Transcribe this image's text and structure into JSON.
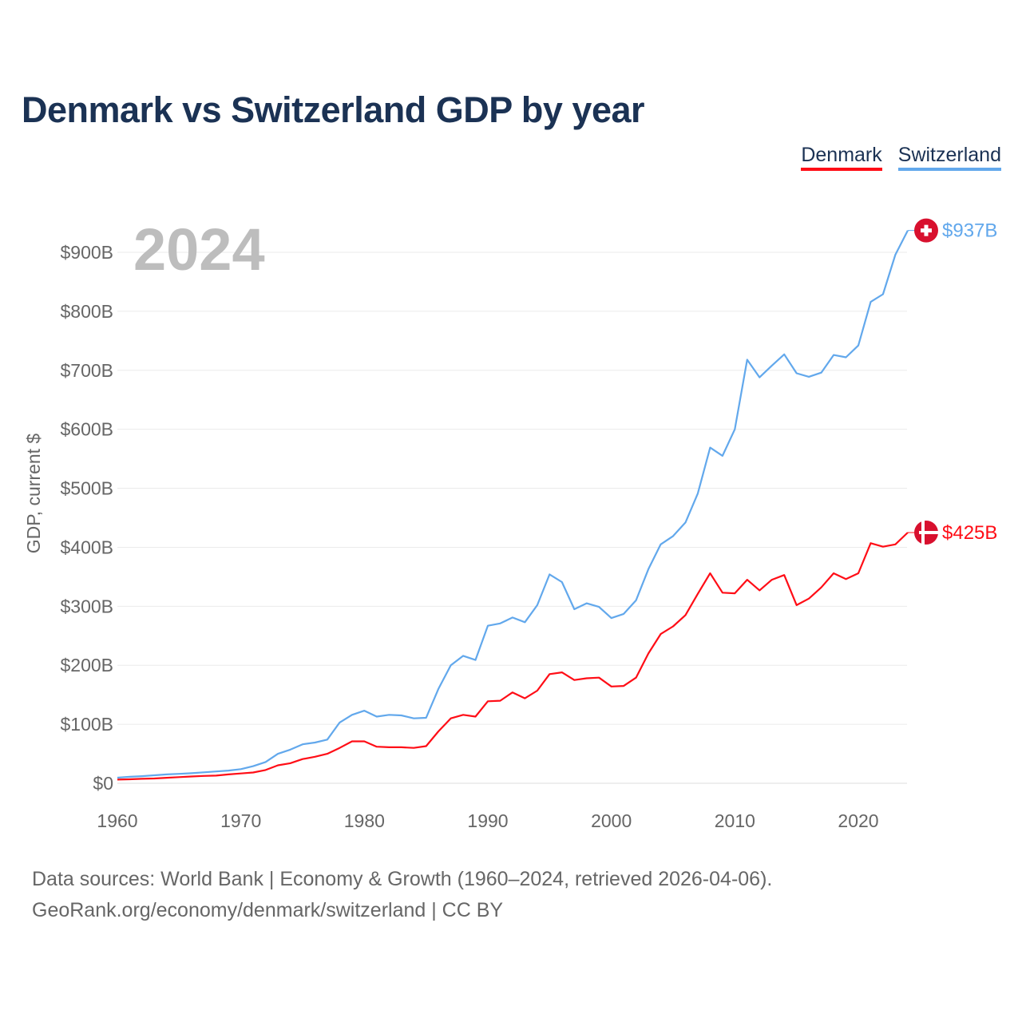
{
  "title": "Denmark vs Switzerland GDP by year",
  "legend": [
    {
      "label": "Denmark",
      "color": "#ff0d16"
    },
    {
      "label": "Switzerland",
      "color": "#62a8ec"
    }
  ],
  "footer": {
    "line1": "Data sources: World Bank | Economy & Growth (1960–2024, retrieved 2026-04-06).",
    "line2": "GeoRank.org/economy/denmark/switzerland | CC BY"
  },
  "chart_data": {
    "type": "line",
    "title": "Denmark vs Switzerland GDP by year",
    "year_label": "2024",
    "xlabel": "",
    "ylabel": "GDP, current $",
    "xlim": [
      1960,
      2024
    ],
    "ylim": [
      0,
      937
    ],
    "grid": true,
    "legend_position": "top-right",
    "x_ticks": [
      1960,
      1970,
      1980,
      1990,
      2000,
      2010,
      2020
    ],
    "x_tick_labels": [
      "1960",
      "1970",
      "1980",
      "1990",
      "2000",
      "2010",
      "2020"
    ],
    "y_ticks": [
      0,
      100,
      200,
      300,
      400,
      500,
      600,
      700,
      800,
      900
    ],
    "y_tick_labels": [
      "$0",
      "$100B",
      "$200B",
      "$300B",
      "$400B",
      "$500B",
      "$600B",
      "$700B",
      "$800B",
      "$900B"
    ],
    "x_start": 1960,
    "series": [
      {
        "name": "Denmark",
        "color": "#ff0d16",
        "end_label": "$425B",
        "flag": "denmark-flag",
        "values": [
          6.2,
          6.8,
          7.6,
          8.1,
          9.3,
          10.4,
          11.5,
          12.5,
          13,
          15,
          16.6,
          18.3,
          22.4,
          30.5,
          34,
          41,
          45,
          50,
          60,
          71,
          71,
          62,
          61,
          61,
          60,
          63,
          88,
          110,
          116,
          113,
          139,
          140,
          154,
          144,
          157,
          185,
          188,
          175,
          178,
          179,
          164,
          165,
          179,
          220,
          253,
          266,
          285,
          321,
          356,
          323,
          322,
          345,
          327,
          345,
          353,
          302,
          313,
          332,
          356,
          346,
          356,
          407,
          401,
          405,
          425
        ]
      },
      {
        "name": "Switzerland",
        "color": "#62a8ec",
        "end_label": "$937B",
        "flag": "switzerland-flag",
        "values": [
          9.5,
          11,
          12,
          13.5,
          15,
          16,
          17,
          18.5,
          20,
          21.5,
          24,
          29,
          36,
          50,
          57,
          66,
          69,
          74,
          103,
          116,
          123,
          113,
          116,
          115,
          110,
          111,
          160,
          200,
          216,
          209,
          267,
          271,
          281,
          273,
          302,
          354,
          341,
          295,
          305,
          299,
          280,
          287,
          310,
          363,
          405,
          419,
          442,
          491,
          569,
          555,
          600,
          718,
          688,
          708,
          727,
          695,
          689,
          696,
          726,
          722,
          742,
          816,
          829,
          896,
          937
        ]
      }
    ]
  }
}
